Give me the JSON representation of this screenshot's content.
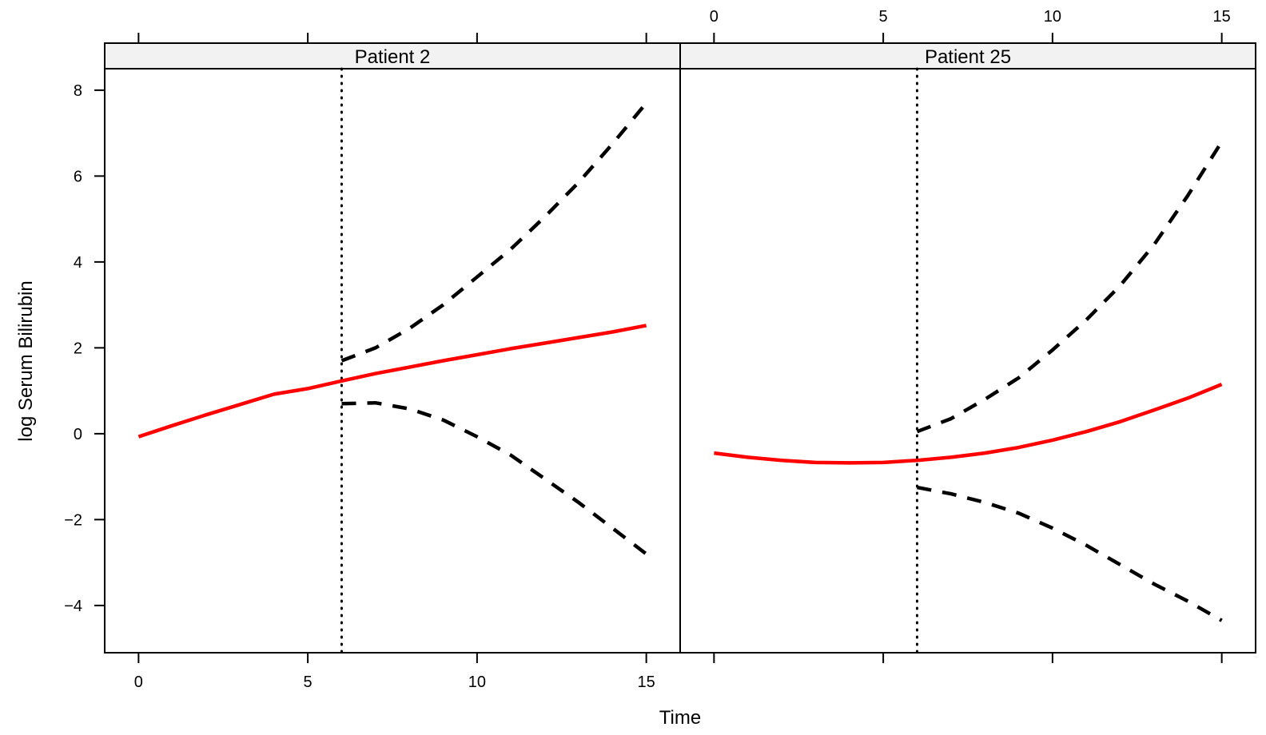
{
  "chart_data": {
    "type": "line",
    "xlabel": "Time",
    "ylabel": "log Serum Bilirubin",
    "xlim": [
      -1,
      16
    ],
    "ylim": [
      -5.1,
      8.5
    ],
    "x_ticks": [
      0,
      5,
      10,
      15
    ],
    "y_ticks": [
      -4,
      -2,
      0,
      2,
      4,
      6,
      8
    ],
    "x_tick_labels": [
      "0",
      "5",
      "10",
      "15"
    ],
    "y_tick_labels": [
      "−4",
      "−2",
      "0",
      "2",
      "4",
      "6",
      "8"
    ],
    "grid": false,
    "legend": "none",
    "colors": {
      "prediction": "#ff0000",
      "interval": "#000000",
      "reference": "#000000"
    },
    "panels": [
      {
        "title": "Patient 2",
        "reference_time": 6,
        "series": [
          {
            "role": "prediction",
            "style": "solid",
            "x": [
              0,
              1,
              2,
              3,
              4,
              5,
              6,
              7,
              8,
              9,
              10,
              11,
              12,
              13,
              14,
              15
            ],
            "y": [
              -0.07,
              0.19,
              0.44,
              0.68,
              0.92,
              1.05,
              1.23,
              1.4,
              1.55,
              1.7,
              1.84,
              1.98,
              2.11,
              2.24,
              2.37,
              2.52
            ]
          },
          {
            "role": "upper",
            "style": "dashed",
            "x": [
              6,
              7,
              8,
              9,
              10,
              11,
              12,
              13,
              14,
              15
            ],
            "y": [
              1.7,
              2.0,
              2.45,
              3.0,
              3.65,
              4.3,
              5.05,
              5.85,
              6.75,
              7.7
            ]
          },
          {
            "role": "lower",
            "style": "dashed",
            "x": [
              6,
              7,
              8,
              9,
              10,
              11,
              12,
              13,
              14,
              15
            ],
            "y": [
              0.7,
              0.72,
              0.58,
              0.32,
              -0.07,
              -0.5,
              -1.05,
              -1.6,
              -2.2,
              -2.8
            ]
          }
        ]
      },
      {
        "title": "Patient 25",
        "reference_time": 6,
        "series": [
          {
            "role": "prediction",
            "style": "solid",
            "x": [
              0,
              1,
              2,
              3,
              4,
              5,
              6,
              7,
              8,
              9,
              10,
              11,
              12,
              13,
              14,
              15
            ],
            "y": [
              -0.45,
              -0.55,
              -0.62,
              -0.67,
              -0.68,
              -0.67,
              -0.62,
              -0.55,
              -0.45,
              -0.32,
              -0.15,
              0.05,
              0.28,
              0.55,
              0.83,
              1.15
            ]
          },
          {
            "role": "upper",
            "style": "dashed",
            "x": [
              6,
              7,
              8,
              9,
              10,
              11,
              12,
              13,
              14,
              15
            ],
            "y": [
              0.05,
              0.35,
              0.8,
              1.3,
              1.95,
              2.65,
              3.45,
              4.4,
              5.55,
              6.8
            ]
          },
          {
            "role": "lower",
            "style": "dashed",
            "x": [
              6,
              7,
              8,
              9,
              10,
              11,
              12,
              13,
              14,
              15
            ],
            "y": [
              -1.25,
              -1.4,
              -1.6,
              -1.85,
              -2.2,
              -2.6,
              -3.05,
              -3.5,
              -3.9,
              -4.35
            ]
          }
        ]
      }
    ]
  }
}
